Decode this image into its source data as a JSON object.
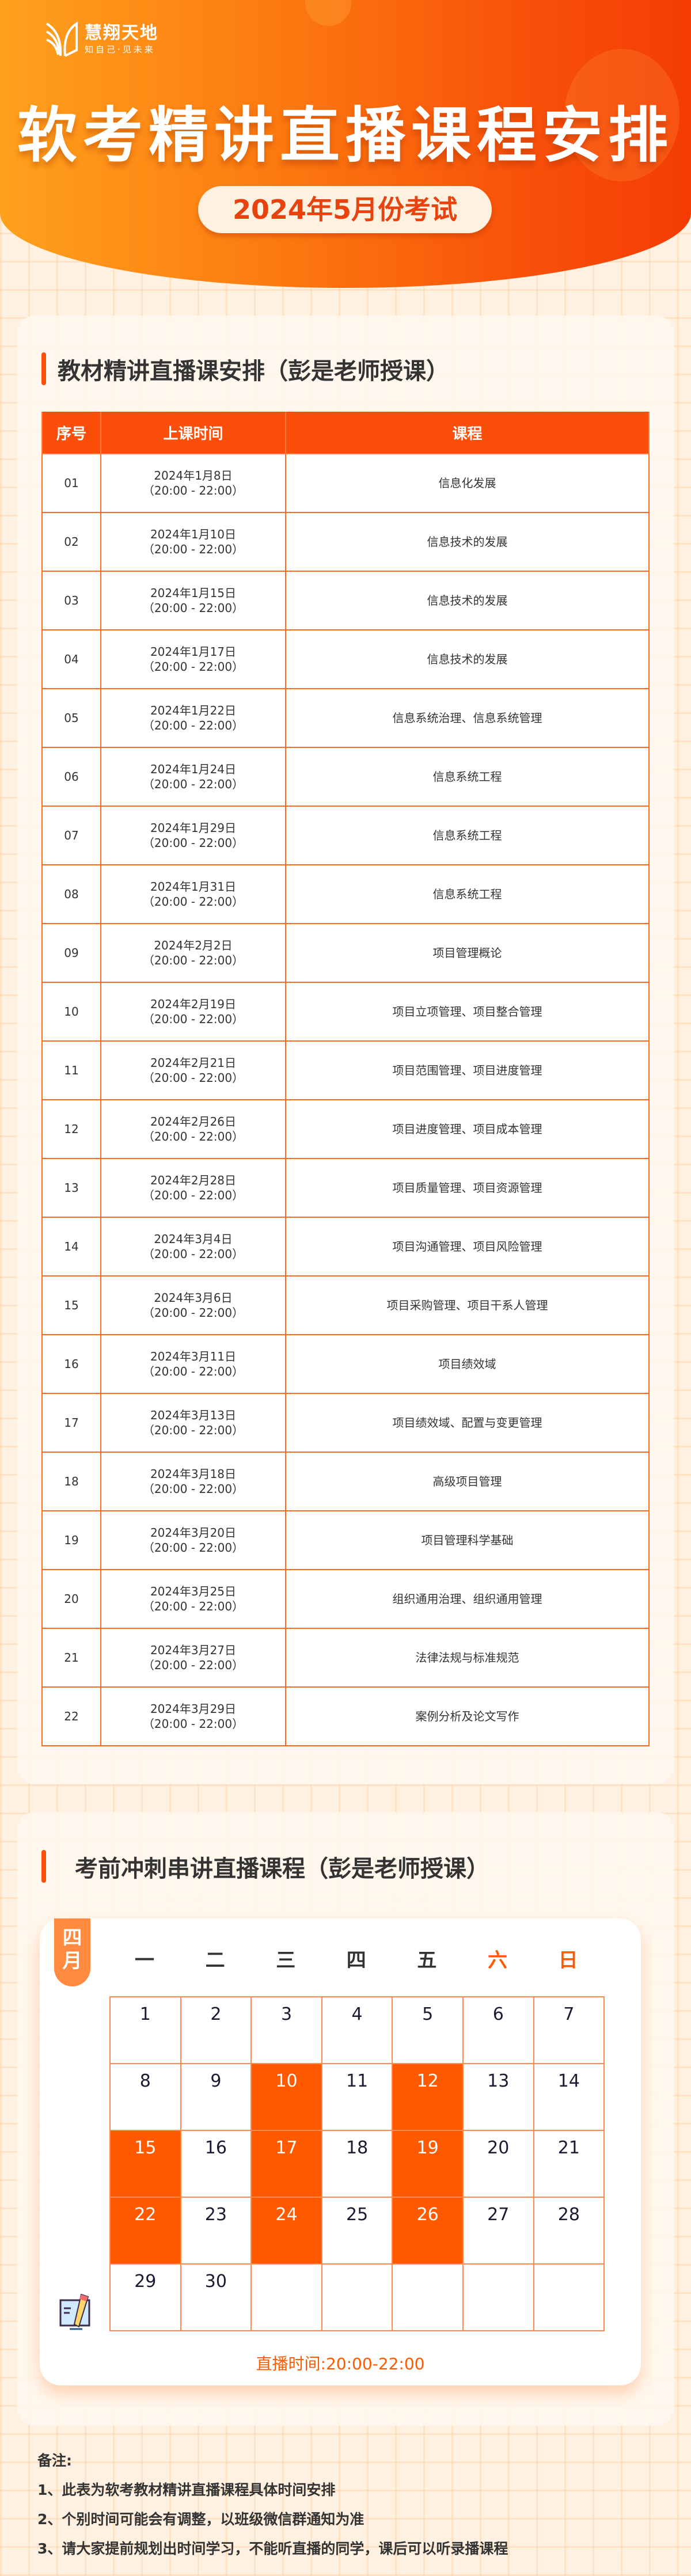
{
  "brand": {
    "name": "慧翔天地",
    "tagline": "知自己·见未来"
  },
  "hero": {
    "title": "软考精讲直播课程安排",
    "subtitle": "2024年5月份考试"
  },
  "section1": {
    "title": "教材精讲直播课安排（彭是老师授课）",
    "columns": [
      "序号",
      "上课时间",
      "课程"
    ],
    "rows": [
      {
        "no": "01",
        "date": "2024年1月8日",
        "time": "（20:00 - 22:00）",
        "course": "信息化发展"
      },
      {
        "no": "02",
        "date": "2024年1月10日",
        "time": "（20:00 - 22:00）",
        "course": "信息技术的发展"
      },
      {
        "no": "03",
        "date": "2024年1月15日",
        "time": "（20:00 - 22:00）",
        "course": "信息技术的发展"
      },
      {
        "no": "04",
        "date": "2024年1月17日",
        "time": "（20:00 - 22:00）",
        "course": "信息技术的发展"
      },
      {
        "no": "05",
        "date": "2024年1月22日",
        "time": "（20:00 - 22:00）",
        "course": "信息系统治理、信息系统管理"
      },
      {
        "no": "06",
        "date": "2024年1月24日",
        "time": "（20:00 - 22:00）",
        "course": "信息系统工程"
      },
      {
        "no": "07",
        "date": "2024年1月29日",
        "time": "（20:00 - 22:00）",
        "course": "信息系统工程"
      },
      {
        "no": "08",
        "date": "2024年1月31日",
        "time": "（20:00 - 22:00）",
        "course": "信息系统工程"
      },
      {
        "no": "09",
        "date": "2024年2月2日",
        "time": "（20:00 - 22:00）",
        "course": "项目管理概论"
      },
      {
        "no": "10",
        "date": "2024年2月19日",
        "time": "（20:00 - 22:00）",
        "course": "项目立项管理、项目整合管理"
      },
      {
        "no": "11",
        "date": "2024年2月21日",
        "time": "（20:00 - 22:00）",
        "course": "项目范围管理、项目进度管理"
      },
      {
        "no": "12",
        "date": "2024年2月26日",
        "time": "（20:00 - 22:00）",
        "course": "项目进度管理、项目成本管理"
      },
      {
        "no": "13",
        "date": "2024年2月28日",
        "time": "（20:00 - 22:00）",
        "course": "项目质量管理、项目资源管理"
      },
      {
        "no": "14",
        "date": "2024年3月4日",
        "time": "（20:00 - 22:00）",
        "course": "项目沟通管理、项目风险管理"
      },
      {
        "no": "15",
        "date": "2024年3月6日",
        "time": "（20:00 - 22:00）",
        "course": "项目采购管理、项目干系人管理"
      },
      {
        "no": "16",
        "date": "2024年3月11日",
        "time": "（20:00 - 22:00）",
        "course": "项目绩效域"
      },
      {
        "no": "17",
        "date": "2024年3月13日",
        "time": "（20:00 - 22:00）",
        "course": "项目绩效域、配置与变更管理"
      },
      {
        "no": "18",
        "date": "2024年3月18日",
        "time": "（20:00 - 22:00）",
        "course": "高级项目管理"
      },
      {
        "no": "19",
        "date": "2024年3月20日",
        "time": "（20:00 - 22:00）",
        "course": "项目管理科学基础"
      },
      {
        "no": "20",
        "date": "2024年3月25日",
        "time": "（20:00 - 22:00）",
        "course": "组织通用治理、组织通用管理"
      },
      {
        "no": "21",
        "date": "2024年3月27日",
        "time": "（20:00 - 22:00）",
        "course": "法律法规与标准规范"
      },
      {
        "no": "22",
        "date": "2024年3月29日",
        "time": "（20:00 - 22:00）",
        "course": "案例分析及论文写作"
      }
    ]
  },
  "section2": {
    "title": "考前冲刺串讲直播课程（彭是老师授课）",
    "calendar": {
      "month": "四月",
      "weekdays": [
        "一",
        "二",
        "三",
        "四",
        "五",
        "六",
        "日"
      ],
      "days": [
        "1",
        "2",
        "3",
        "4",
        "5",
        "6",
        "7",
        "8",
        "9",
        "10",
        "11",
        "12",
        "13",
        "14",
        "15",
        "16",
        "17",
        "18",
        "19",
        "20",
        "21",
        "22",
        "23",
        "24",
        "25",
        "26",
        "27",
        "28",
        "29",
        "30"
      ],
      "highlighted": [
        "10",
        "12",
        "15",
        "17",
        "19",
        "22",
        "24",
        "26"
      ],
      "accent": "#ff5a00",
      "weekend_color": "#ff5a00"
    },
    "live_time": "直播时间:20:00-22:00"
  },
  "notes": {
    "heading": "备注:",
    "items": [
      "1、此表为软考教材精讲直播课程具体时间安排",
      "2、个别时间可能会有调整，以班级微信群通知为准",
      "3、请大家提前规划出时间学习，不能听直播的同学，课后可以听录播课程"
    ]
  }
}
